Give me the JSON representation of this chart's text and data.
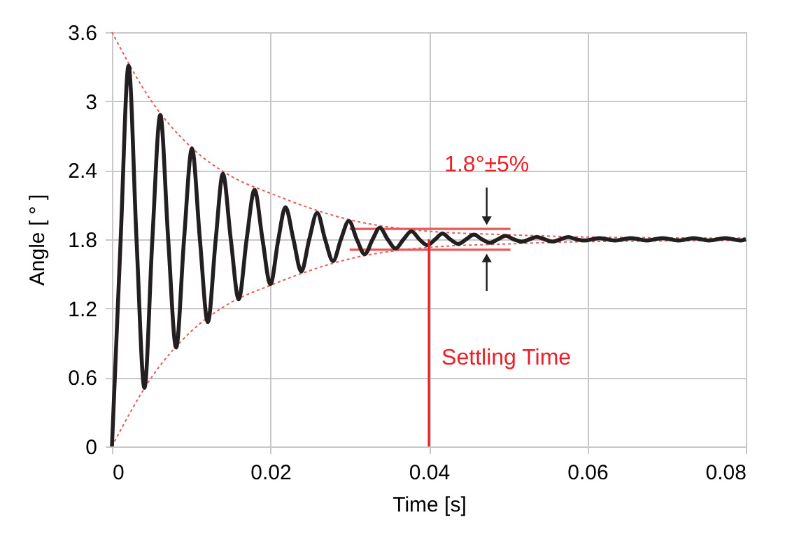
{
  "chart_data": {
    "type": "line",
    "xlabel": "Time [s]",
    "ylabel": "Angle [ ° ]",
    "xlim": [
      0,
      0.08
    ],
    "ylim": [
      0,
      3.6
    ],
    "xticks": [
      0,
      0.02,
      0.04,
      0.06,
      0.08
    ],
    "yticks": [
      0,
      0.6,
      1.2,
      1.8,
      2.4,
      3,
      3.6
    ],
    "grid": true,
    "series": [
      {
        "color": "#e8595a",
        "line_style": "dotted",
        "x": [
          0,
          0.005,
          0.01,
          0.015,
          0.02,
          0.03,
          0.04,
          0.05,
          0.06,
          0.08
        ],
        "values": [
          3.6,
          3.0,
          2.6,
          2.35,
          2.2,
          1.97,
          1.87,
          1.84,
          1.82,
          1.81
        ]
      },
      {
        "color": "#e8595a",
        "line_style": "dotted",
        "x": [
          0,
          0.005,
          0.01,
          0.015,
          0.02,
          0.03,
          0.04,
          0.05,
          0.06,
          0.08
        ],
        "values": [
          0,
          0.6,
          1.0,
          1.25,
          1.4,
          1.63,
          1.73,
          1.76,
          1.78,
          1.79
        ]
      },
      {
        "color": "#e8595a",
        "line_style": "solid",
        "x": [
          0.03,
          0.0503
        ],
        "values": [
          1.89,
          1.89
        ]
      },
      {
        "color": "#e8595a",
        "line_style": "solid",
        "x": [
          0.03,
          0.0503
        ],
        "values": [
          1.71,
          1.71
        ]
      },
      {
        "color": "#231f20",
        "line_style": "solid",
        "x": [
          0,
          0.0011,
          0.0021,
          0.0031,
          0.0041,
          0.0051,
          0.0061,
          0.0071,
          0.0081,
          0.0091,
          0.0101,
          0.0111,
          0.0121,
          0.0131,
          0.014,
          0.015,
          0.016,
          0.017,
          0.018,
          0.019,
          0.02,
          0.021,
          0.0219,
          0.0229,
          0.0239,
          0.0249,
          0.0259,
          0.0269,
          0.0279,
          0.0289,
          0.0299,
          0.0309,
          0.0319,
          0.0329,
          0.0338,
          0.0348,
          0.0358,
          0.0368,
          0.0378,
          0.0388,
          0.0398,
          0.0408,
          0.0417,
          0.0427,
          0.0437,
          0.0447,
          0.0457,
          0.0467,
          0.0477,
          0.0487,
          0.0497,
          0.0507,
          0.0517,
          0.0527,
          0.0536,
          0.0546,
          0.0556,
          0.0566,
          0.0576,
          0.0586,
          0.0596,
          0.0606,
          0.0615,
          0.0625,
          0.0635,
          0.0645,
          0.0655,
          0.0665,
          0.0675,
          0.0685,
          0.0695,
          0.0705,
          0.0715,
          0.0725,
          0.0734,
          0.0744,
          0.0754,
          0.0764,
          0.0774,
          0.0784,
          0.0794,
          0.08
        ],
        "values": [
          0,
          1.8,
          3.31,
          1.8,
          0.51,
          1.8,
          2.88,
          1.8,
          0.86,
          1.8,
          2.59,
          1.8,
          1.08,
          1.8,
          2.37,
          1.8,
          1.28,
          1.8,
          2.23,
          1.8,
          1.41,
          1.8,
          2.08,
          1.8,
          1.52,
          1.8,
          2.03,
          1.8,
          1.61,
          1.8,
          1.96,
          1.8,
          1.67,
          1.8,
          1.9,
          1.8,
          1.72,
          1.8,
          1.87,
          1.8,
          1.75,
          1.8,
          1.85,
          1.8,
          1.76,
          1.8,
          1.84,
          1.8,
          1.77,
          1.8,
          1.83,
          1.8,
          1.78,
          1.8,
          1.82,
          1.8,
          1.78,
          1.8,
          1.82,
          1.8,
          1.79,
          1.8,
          1.81,
          1.8,
          1.79,
          1.8,
          1.81,
          1.8,
          1.79,
          1.8,
          1.81,
          1.8,
          1.79,
          1.8,
          1.81,
          1.8,
          1.79,
          1.8,
          1.81,
          1.8,
          1.79,
          1.8
        ]
      },
      {
        "color": "#e8202a",
        "line_style": "solid",
        "x": [
          0.04,
          0.04
        ],
        "values": [
          0,
          1.8
        ]
      }
    ],
    "annotations": [
      {
        "text": "1.8°±5%",
        "x": 0.0473,
        "y": 1.89
      },
      "Settling Time"
    ]
  }
}
